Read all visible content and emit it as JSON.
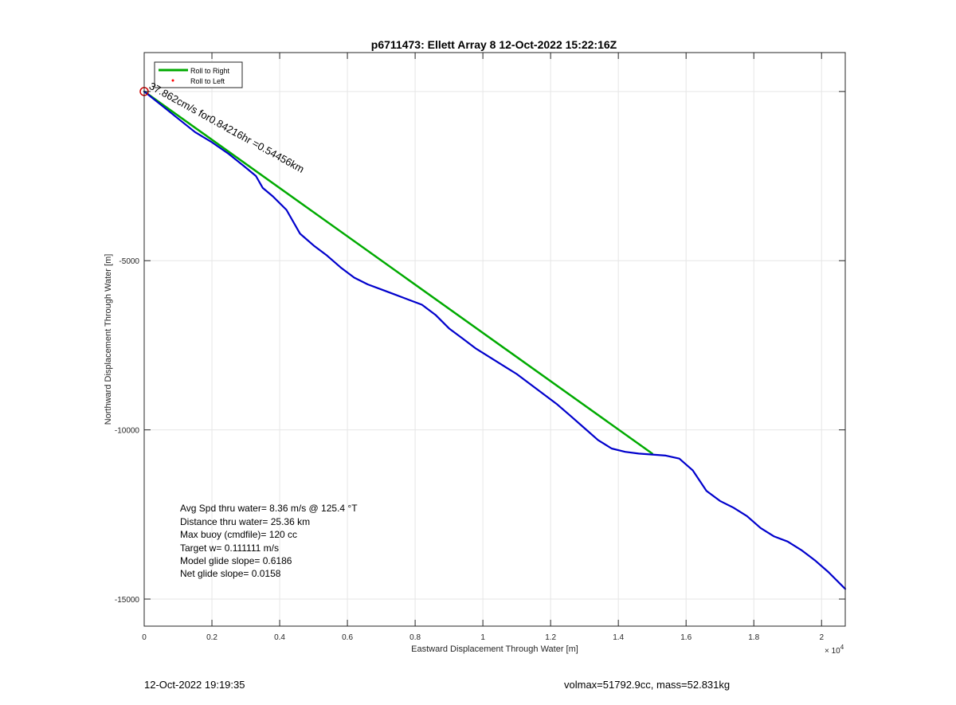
{
  "chart_data": {
    "type": "line",
    "title": "p6711473: Ellett Array 8 12-Oct-2022 15:22:16Z",
    "xlabel": "Eastward Displacement Through Water [m]",
    "ylabel": "Northward Displacement Through Water [m]",
    "x_exponent_label": "× 10",
    "x_exponent_power": "4",
    "xlim": [
      0,
      20700
    ],
    "ylim": [
      -15800,
      1150
    ],
    "x_ticks": [
      0,
      2000,
      4000,
      6000,
      8000,
      10000,
      12000,
      14000,
      16000,
      18000,
      20000
    ],
    "x_tick_labels": [
      "0",
      "0.2",
      "0.4",
      "0.6",
      "0.8",
      "1",
      "1.2",
      "1.4",
      "1.6",
      "1.8",
      "2"
    ],
    "y_ticks": [
      0,
      -5000,
      -10000,
      -15000
    ],
    "y_tick_labels": [
      "",
      "-5000",
      "-10000",
      "-15000"
    ],
    "grid": true,
    "legend": {
      "location": "top-left",
      "entries": [
        {
          "name": "Roll to Right",
          "color": "#00aa00",
          "style": "line"
        },
        {
          "name": "Roll to Left",
          "color": "#ff0000",
          "style": "dot"
        }
      ]
    },
    "series": [
      {
        "name": "",
        "color": "#00aa00",
        "x": [
          0,
          15000
        ],
        "y": [
          0,
          -10700
        ]
      },
      {
        "name": "",
        "color": "#0000cc",
        "x": [
          0,
          500,
          1000,
          1500,
          2000,
          2500,
          3000,
          3300,
          3500,
          3800,
          4200,
          4600,
          5000,
          5400,
          5800,
          6200,
          6600,
          7000,
          7400,
          7800,
          8200,
          8600,
          9000,
          9400,
          9800,
          10200,
          10600,
          11000,
          11400,
          11800,
          12200,
          12600,
          13000,
          13400,
          13800,
          14200,
          14600,
          15000,
          15400,
          15800,
          16200,
          16600,
          17000,
          17400,
          17800,
          18200,
          18600,
          19000,
          19400,
          19800,
          20200,
          20700
        ],
        "y": [
          0,
          -400,
          -800,
          -1200,
          -1500,
          -1850,
          -2250,
          -2500,
          -2850,
          -3100,
          -3500,
          -4200,
          -4550,
          -4850,
          -5200,
          -5500,
          -5700,
          -5850,
          -6000,
          -6150,
          -6300,
          -6600,
          -7000,
          -7300,
          -7600,
          -7850,
          -8100,
          -8350,
          -8650,
          -8950,
          -9250,
          -9600,
          -9950,
          -10300,
          -10550,
          -10650,
          -10700,
          -10730,
          -10760,
          -10850,
          -11200,
          -11800,
          -12100,
          -12300,
          -12550,
          -12900,
          -13150,
          -13300,
          -13550,
          -13850,
          -14200,
          -14700
        ]
      }
    ],
    "markers": [
      {
        "shape": "circle",
        "color": "#cc0000",
        "x": 0,
        "y": 0
      }
    ],
    "annotation": {
      "text": "37.862cm/s for0.84216hr =0.54456km",
      "x": 120,
      "y": 100,
      "angle": 29
    },
    "stats": [
      "Avg Spd thru water=  8.36 m/s @ 125.4 °T",
      "Distance thru water= 25.36 km",
      "Max buoy (cmdfile)= 120 cc",
      "Target w= 0.111111 m/s",
      "Model glide slope= 0.6186",
      "Net glide slope= 0.0158"
    ]
  },
  "footer": {
    "left": "12-Oct-2022 19:19:35",
    "right": "volmax=51792.9cc, mass=52.831kg"
  }
}
